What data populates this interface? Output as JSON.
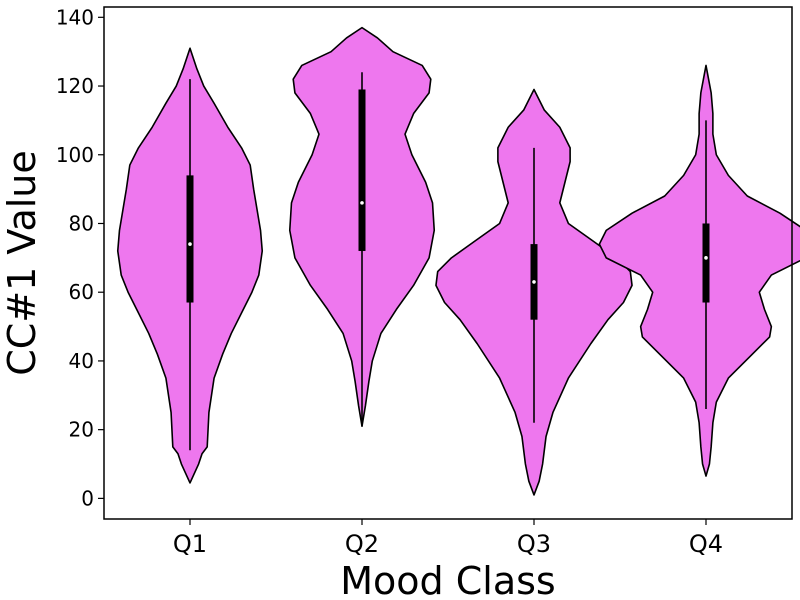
{
  "chart_data": {
    "type": "violin",
    "title": "",
    "xlabel": "Mood Class",
    "ylabel": "CC#1 Value",
    "xlim": [
      0.5,
      4.5
    ],
    "ylim": [
      -6,
      143
    ],
    "yticks": [
      0,
      20,
      40,
      60,
      80,
      100,
      120,
      140
    ],
    "grid": false,
    "legend": "none",
    "fill_color": "#ee77ee",
    "edge_color": "#000000",
    "categories": [
      "Q1",
      "Q2",
      "Q3",
      "Q4"
    ],
    "violins": [
      {
        "category": "Q1",
        "min": 14,
        "max": 122,
        "q1": 57,
        "q3": 94,
        "median": 74,
        "profile": [
          [
            4.5,
            0.0
          ],
          [
            10,
            0.05
          ],
          [
            13,
            0.07
          ],
          [
            15,
            0.1
          ],
          [
            25,
            0.11
          ],
          [
            35,
            0.14
          ],
          [
            42,
            0.19
          ],
          [
            48,
            0.24
          ],
          [
            55,
            0.31
          ],
          [
            60,
            0.36
          ],
          [
            65,
            0.4
          ],
          [
            72,
            0.42
          ],
          [
            78,
            0.41
          ],
          [
            84,
            0.39
          ],
          [
            90,
            0.37
          ],
          [
            97,
            0.35
          ],
          [
            102,
            0.3
          ],
          [
            108,
            0.22
          ],
          [
            115,
            0.14
          ],
          [
            120,
            0.08
          ],
          [
            125,
            0.04
          ],
          [
            131,
            0.0
          ]
        ]
      },
      {
        "category": "Q2",
        "min": 21,
        "max": 124,
        "q1": 72,
        "q3": 119,
        "median": 86,
        "profile": [
          [
            21,
            0.0
          ],
          [
            27,
            0.02
          ],
          [
            34,
            0.04
          ],
          [
            40,
            0.06
          ],
          [
            48,
            0.11
          ],
          [
            55,
            0.2
          ],
          [
            62,
            0.3
          ],
          [
            70,
            0.39
          ],
          [
            78,
            0.42
          ],
          [
            86,
            0.41
          ],
          [
            92,
            0.37
          ],
          [
            100,
            0.29
          ],
          [
            106,
            0.25
          ],
          [
            112,
            0.3
          ],
          [
            118,
            0.39
          ],
          [
            122,
            0.4
          ],
          [
            126,
            0.35
          ],
          [
            130,
            0.18
          ],
          [
            134,
            0.09
          ],
          [
            137,
            0.0
          ]
        ]
      },
      {
        "category": "Q3",
        "min": 22,
        "max": 102,
        "q1": 52,
        "q3": 74,
        "median": 63,
        "profile": [
          [
            1,
            0.0
          ],
          [
            5,
            0.03
          ],
          [
            10,
            0.05
          ],
          [
            18,
            0.07
          ],
          [
            25,
            0.11
          ],
          [
            35,
            0.2
          ],
          [
            45,
            0.33
          ],
          [
            52,
            0.43
          ],
          [
            57,
            0.52
          ],
          [
            62,
            0.57
          ],
          [
            66,
            0.56
          ],
          [
            70,
            0.48
          ],
          [
            75,
            0.34
          ],
          [
            80,
            0.2
          ],
          [
            86,
            0.15
          ],
          [
            92,
            0.18
          ],
          [
            98,
            0.21
          ],
          [
            102,
            0.21
          ],
          [
            108,
            0.15
          ],
          [
            113,
            0.06
          ],
          [
            119,
            0.0
          ]
        ]
      },
      {
        "category": "Q4",
        "min": 26,
        "max": 110,
        "q1": 57,
        "q3": 80,
        "median": 70,
        "profile": [
          [
            6.5,
            0.0
          ],
          [
            10,
            0.02
          ],
          [
            15,
            0.03
          ],
          [
            22,
            0.04
          ],
          [
            28,
            0.06
          ],
          [
            35,
            0.13
          ],
          [
            42,
            0.27
          ],
          [
            47,
            0.37
          ],
          [
            50,
            0.38
          ],
          [
            55,
            0.34
          ],
          [
            60,
            0.31
          ],
          [
            65,
            0.38
          ],
          [
            70,
            0.58
          ],
          [
            74,
            0.62
          ],
          [
            78,
            0.58
          ],
          [
            83,
            0.43
          ],
          [
            88,
            0.24
          ],
          [
            94,
            0.13
          ],
          [
            100,
            0.06
          ],
          [
            106,
            0.04
          ],
          [
            112,
            0.04
          ],
          [
            118,
            0.03
          ],
          [
            126,
            0.0
          ]
        ]
      }
    ]
  }
}
